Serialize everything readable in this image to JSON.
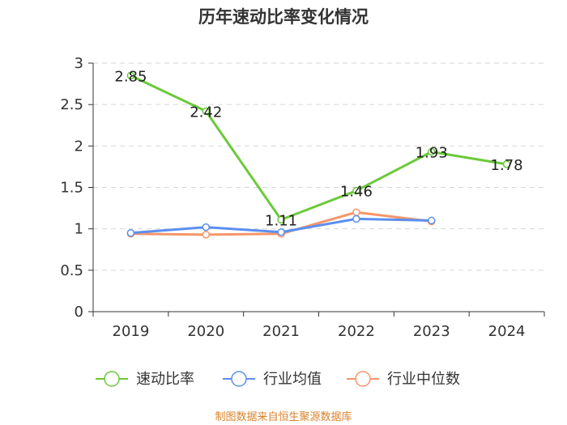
{
  "chart_data": {
    "type": "line",
    "title": "历年速动比率变化情况",
    "categories": [
      "2019",
      "2020",
      "2021",
      "2022",
      "2023",
      "2024"
    ],
    "ylim": [
      0,
      3
    ],
    "yticks": [
      0,
      0.5,
      1,
      1.5,
      2,
      2.5,
      3
    ],
    "ytick_labels": [
      "0",
      "0.5",
      "1",
      "1.5",
      "2",
      "2.5",
      "3"
    ],
    "grid": true,
    "legend_position": "bottom",
    "series": [
      {
        "name": "速动比率",
        "color": "#6cc93a",
        "values": [
          2.85,
          2.42,
          1.11,
          1.46,
          1.93,
          1.78
        ],
        "labels": [
          "2.85",
          "2.42",
          "1.11",
          "1.46",
          "1.93",
          "1.78"
        ],
        "show_labels": true
      },
      {
        "name": "行业均值",
        "color": "#5b8ff0",
        "values": [
          0.95,
          1.02,
          0.96,
          1.12,
          1.1,
          null
        ],
        "show_labels": false
      },
      {
        "name": "行业中位数",
        "color": "#f5956a",
        "values": [
          0.94,
          0.93,
          0.94,
          1.2,
          1.09,
          null
        ],
        "show_labels": false
      }
    ],
    "source": "制图数据来自恒生聚源数据库"
  }
}
